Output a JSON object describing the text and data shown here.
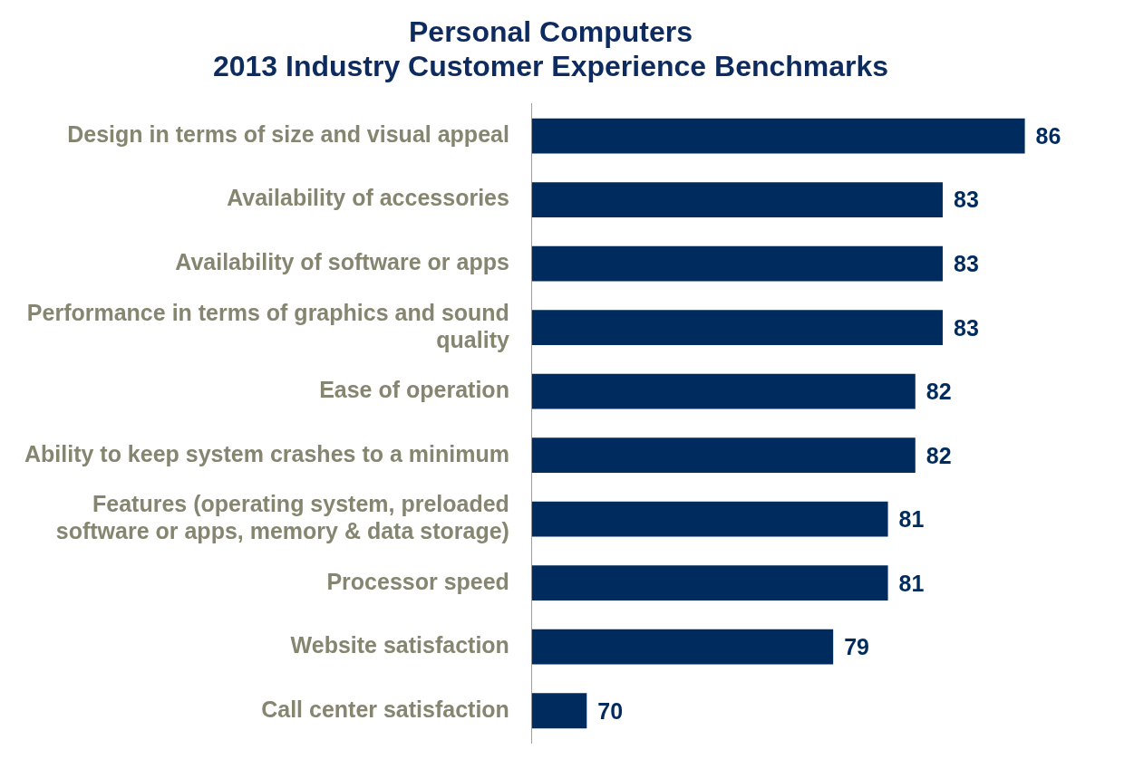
{
  "chart_data": {
    "type": "bar",
    "orientation": "horizontal",
    "title": [
      "Personal Computers",
      "2013 Industry Customer Experience Benchmarks"
    ],
    "categories": [
      "Design in terms of size and visual appeal",
      "Availability of accessories",
      "Availability of software or apps",
      "Performance in terms of graphics and sound quality",
      "Ease of operation",
      "Ability to keep system crashes to a minimum",
      "Features (operating system, preloaded software or apps, memory & data storage)",
      "Processor speed",
      "Website satisfaction",
      "Call center satisfaction"
    ],
    "values": [
      86,
      83,
      83,
      83,
      82,
      82,
      81,
      81,
      79,
      70
    ],
    "color": "#002b5e",
    "data_labels": true,
    "grid": false,
    "legend": false,
    "tick_labels": "y"
  }
}
